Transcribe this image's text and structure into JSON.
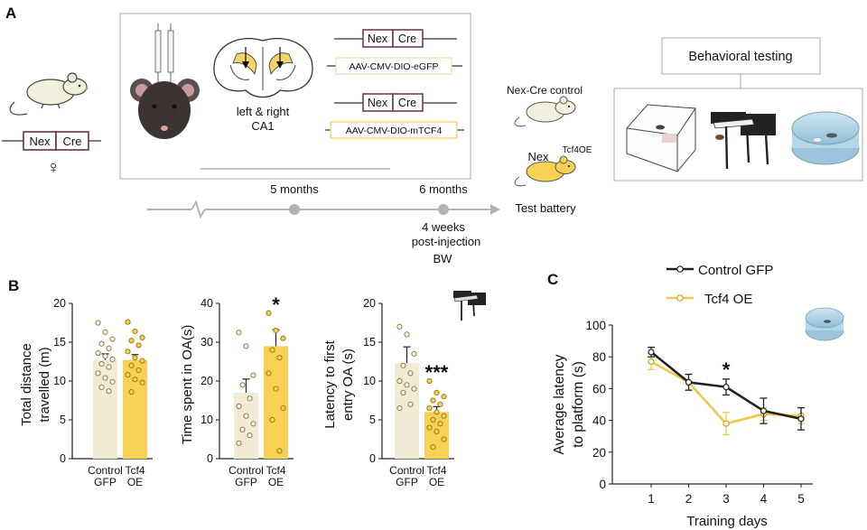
{
  "panels": {
    "A": {
      "label": "A",
      "cre_left": "Nex",
      "cre_right": "Cre",
      "female_symbol": "♀",
      "injection_site": "left & right",
      "injection_region": "CA1",
      "construct1_top_left": "Nex",
      "construct1_top_right": "Cre",
      "construct1_vector": "AAV-CMV-DIO-eGFP",
      "construct2_top_left": "Nex",
      "construct2_top_right": "Cre",
      "construct2_vector": "AAV-CMV-DIO-mTCF4",
      "timeline_5m": "5 months",
      "timeline_6m": "6 months",
      "post_injection_1": "4 weeks",
      "post_injection_2": "post-injection",
      "bw": "BW",
      "test_battery": "Test battery",
      "group_control": "Nex-Cre control",
      "group_oe_base": "Nex",
      "group_oe_sup": "Tcf4OE",
      "behavioral_testing": "Behavioral testing"
    },
    "B": {
      "label": "B"
    },
    "C": {
      "label": "C"
    }
  },
  "colors": {
    "control_bar": "#f1ebd6",
    "oe_bar": "#f7d153",
    "oe_line": "#f2c84b",
    "control_line": "#222222",
    "cre_box": "#6e2d46",
    "brain_highlight": "#f3d46a",
    "timeline": "#b3b3b3"
  },
  "chart_data": [
    {
      "type": "bar",
      "title": "",
      "ylabel": "Total distance travelled (m)",
      "ylabel_line1": "Total distance",
      "ylabel_line2": "travelled (m)",
      "categories": [
        "Control GFP",
        "Tcf4 OE"
      ],
      "category_lines": [
        [
          "Control",
          "GFP"
        ],
        [
          "Tcf4",
          "OE"
        ]
      ],
      "values": [
        12.7,
        12.7
      ],
      "sem": [
        0.8,
        0.7
      ],
      "ylim": [
        0,
        20
      ],
      "yticks": [
        0,
        5,
        10,
        15,
        20
      ],
      "ytick_labels": [
        "0",
        "5",
        "10",
        "15",
        "20"
      ],
      "significance": "",
      "points": [
        [
          17.5,
          16.3,
          15.4,
          14.8,
          14.2,
          13.6,
          13.2,
          12.8,
          12.2,
          11.8,
          11.0,
          10.4,
          9.9,
          9.2,
          8.7
        ],
        [
          17.6,
          16.4,
          15.6,
          15.2,
          14.6,
          13.8,
          13.0,
          12.6,
          12.0,
          11.4,
          10.8,
          10.2,
          9.8,
          8.6
        ]
      ]
    },
    {
      "type": "bar",
      "title": "",
      "ylabel": "Time spent in OA(s)",
      "ylabel_line1": "Time spent in OA(s)",
      "ylabel_line2": "",
      "categories": [
        "Control GFP",
        "Tcf4 OE"
      ],
      "category_lines": [
        [
          "Control",
          "GFP"
        ],
        [
          "Tcf4",
          "OE"
        ]
      ],
      "values": [
        17.0,
        29.0
      ],
      "sem": [
        3.5,
        4.2
      ],
      "ylim": [
        0,
        40
      ],
      "yticks": [
        0,
        10,
        20,
        30,
        40
      ],
      "ytick_labels": [
        "0",
        "10",
        "20",
        "30",
        "40"
      ],
      "significance": "*",
      "points": [
        [
          32.5,
          29.0,
          21.5,
          19.0,
          15.5,
          13.5,
          11.0,
          9.0,
          7.5,
          6.0,
          4.0
        ],
        [
          37.5,
          33.0,
          31.0,
          28.0,
          26.0,
          22.0,
          18.0,
          13.0,
          10.0,
          2.0
        ]
      ]
    },
    {
      "type": "bar",
      "title": "",
      "ylabel": "Latency to first entry OA (s)",
      "ylabel_line1": "Latency to first",
      "ylabel_line2": "entry OA (s)",
      "categories": [
        "Control GFP",
        "Tcf4 OE"
      ],
      "category_lines": [
        [
          "Control",
          "GFP"
        ],
        [
          "Tcf4",
          "OE"
        ]
      ],
      "values": [
        12.3,
        6.0
      ],
      "sem": [
        2.1,
        0.7
      ],
      "ylim": [
        0,
        20
      ],
      "yticks": [
        0,
        5,
        10,
        15,
        20
      ],
      "ytick_labels": [
        "0",
        "5",
        "10",
        "15",
        "20"
      ],
      "significance": "***",
      "points": [
        [
          17.0,
          16.0,
          13.5,
          12.0,
          11.0,
          10.0,
          9.5,
          9.0,
          8.5,
          7.0,
          6.5
        ],
        [
          10.0,
          8.5,
          8.0,
          7.5,
          7.0,
          6.5,
          6.0,
          5.5,
          5.0,
          4.5,
          4.0,
          3.5,
          2.5,
          1.5
        ]
      ]
    },
    {
      "type": "line",
      "title": "",
      "xlabel": "Training days",
      "ylabel": "Average latency to platform (s)",
      "ylabel_line1": "Average latency",
      "ylabel_line2": "to platform (s)",
      "x": [
        1,
        2,
        3,
        4,
        5
      ],
      "xtick_labels": [
        "1",
        "2",
        "3",
        "4",
        "5"
      ],
      "ylim": [
        0,
        100
      ],
      "yticks": [
        0,
        20,
        40,
        60,
        80,
        100
      ],
      "ytick_labels": [
        "0",
        "20",
        "40",
        "60",
        "80",
        "100"
      ],
      "series": [
        {
          "name": "Control GFP",
          "values": [
            83,
            64,
            61,
            46,
            41
          ],
          "sem": [
            3,
            5,
            5,
            8,
            7
          ]
        },
        {
          "name": "Tcf4 OE",
          "values": [
            77,
            64,
            38,
            44,
            43
          ],
          "sem": [
            5,
            5,
            7,
            4,
            5
          ]
        }
      ],
      "significance": [
        {
          "x": 3,
          "label": "*"
        }
      ],
      "legend": "top"
    }
  ]
}
